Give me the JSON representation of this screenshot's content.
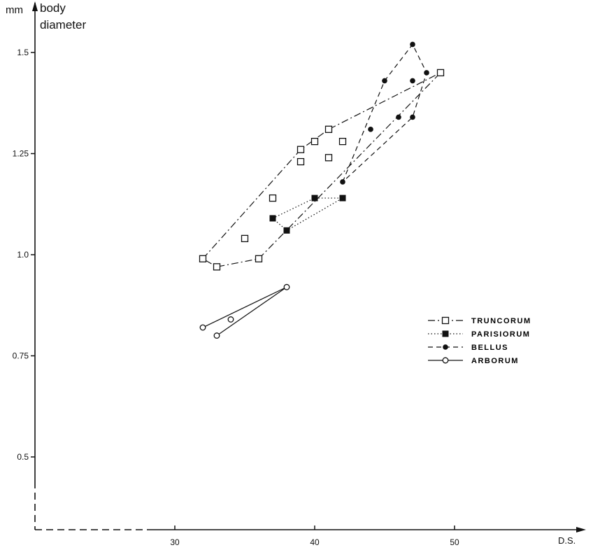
{
  "chart_data": {
    "type": "scatter",
    "y_unit": "mm",
    "ylabel": "body diameter",
    "xlabel": "D.S.",
    "xlim": [
      20,
      59
    ],
    "ylim": [
      0.3,
      1.57
    ],
    "x_ticks": [
      30,
      40,
      50
    ],
    "y_ticks": [
      0.5,
      0.75,
      1.0,
      1.25,
      1.5
    ],
    "y_tick_labels": [
      "0.5",
      "0.75",
      "1.0",
      "1.25",
      "1.5"
    ],
    "grid": false,
    "legend_position": "right",
    "series": [
      {
        "name": "TRUNCORUM",
        "marker": "open-square",
        "line": "dash-dot",
        "points": [
          [
            32,
            0.99
          ],
          [
            33,
            0.97
          ],
          [
            35,
            1.04
          ],
          [
            36,
            0.99
          ],
          [
            37,
            1.14
          ],
          [
            39,
            1.26
          ],
          [
            39,
            1.23
          ],
          [
            40,
            1.28
          ],
          [
            41,
            1.31
          ],
          [
            41,
            1.24
          ],
          [
            42,
            1.28
          ],
          [
            49,
            1.45
          ]
        ],
        "outline": [
          [
            32,
            0.99
          ],
          [
            39,
            1.26
          ],
          [
            41,
            1.31
          ],
          [
            49,
            1.45
          ],
          [
            36,
            0.99
          ],
          [
            33,
            0.97
          ],
          [
            32,
            0.99
          ]
        ]
      },
      {
        "name": "PARISIORUM",
        "marker": "filled-square",
        "line": "dotted",
        "points": [
          [
            37,
            1.09
          ],
          [
            38,
            1.06
          ],
          [
            40,
            1.14
          ],
          [
            42,
            1.14
          ]
        ],
        "outline": [
          [
            37,
            1.09
          ],
          [
            40,
            1.14
          ],
          [
            42,
            1.14
          ],
          [
            38,
            1.06
          ],
          [
            37,
            1.09
          ]
        ]
      },
      {
        "name": "BELLUS",
        "marker": "filled-circle",
        "line": "dashed",
        "points": [
          [
            42,
            1.18
          ],
          [
            44,
            1.31
          ],
          [
            45,
            1.43
          ],
          [
            46,
            1.34
          ],
          [
            47,
            1.52
          ],
          [
            47,
            1.43
          ],
          [
            47,
            1.34
          ],
          [
            48,
            1.45
          ]
        ],
        "outline": [
          [
            42,
            1.18
          ],
          [
            45,
            1.43
          ],
          [
            47,
            1.52
          ],
          [
            48,
            1.45
          ],
          [
            47,
            1.34
          ],
          [
            42,
            1.18
          ]
        ]
      },
      {
        "name": "ARBORUM",
        "marker": "open-circle",
        "line": "solid",
        "points": [
          [
            32,
            0.82
          ],
          [
            33,
            0.8
          ],
          [
            34,
            0.84
          ],
          [
            38,
            0.92
          ]
        ],
        "outline": [
          [
            32,
            0.82
          ],
          [
            38,
            0.92
          ],
          [
            33,
            0.8
          ]
        ]
      }
    ]
  }
}
